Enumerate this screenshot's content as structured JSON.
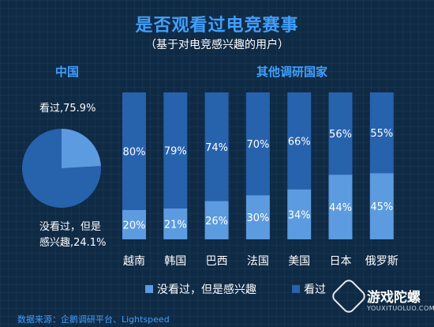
{
  "header": {
    "title": "是否观看过电竞赛事",
    "subtitle": "（基于对电竞感兴趣的用户）"
  },
  "sections": {
    "china": "中国",
    "others": "其他调研国家"
  },
  "colors": {
    "watched": "#2762ad",
    "not_watched": "#5c9be0",
    "accent": "#3fa0ff"
  },
  "chart_data": [
    {
      "type": "pie",
      "title": "中国",
      "slices": [
        {
          "name": "看过",
          "value": 75.9,
          "label": "看过,75.9%"
        },
        {
          "name": "没看过，但是感兴趣",
          "value": 24.1,
          "label_line1": "没看过，但是",
          "label_line2": "感兴趣,24.1%"
        }
      ]
    },
    {
      "type": "bar",
      "stacked": true,
      "percent": true,
      "title": "其他调研国家",
      "categories": [
        "越南",
        "韩国",
        "巴西",
        "法国",
        "美国",
        "日本",
        "俄罗斯"
      ],
      "series": [
        {
          "name": "没看过，但是感兴趣",
          "values": [
            20,
            21,
            26,
            30,
            34,
            44,
            45
          ]
        },
        {
          "name": "看过",
          "values": [
            80,
            79,
            74,
            70,
            66,
            56,
            55
          ]
        }
      ],
      "ylim": [
        0,
        100
      ],
      "legend": "bottom"
    }
  ],
  "footer": {
    "source": "数据来源：企鹅调研平台、Lightspeed",
    "logo_text": "游戏陀螺",
    "logo_sub": "YOUXITUOLUO.COM"
  }
}
